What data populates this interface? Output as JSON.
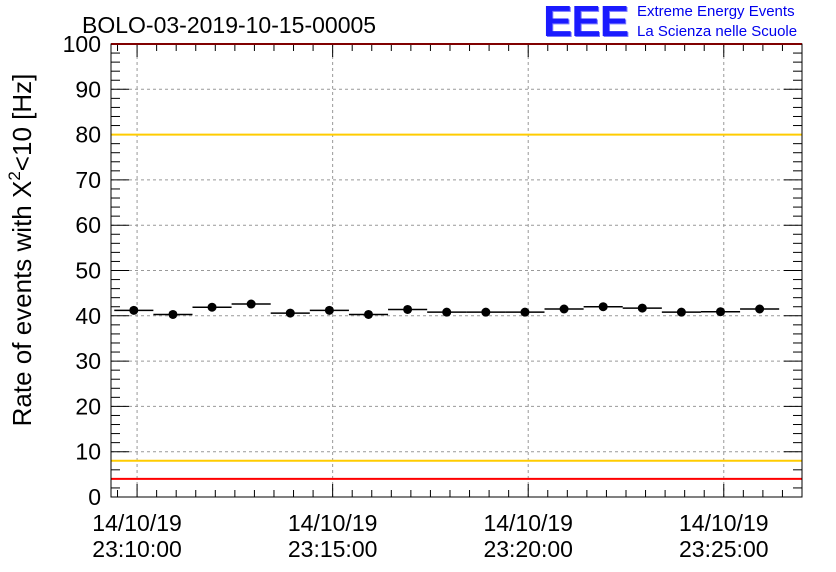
{
  "header": {
    "logo_text": "EEE",
    "logo_line1": "Extreme Energy Events",
    "logo_line2": "La Scienza nelle Scuole"
  },
  "colors": {
    "upper_limit": "#ff0000",
    "warning_high": "#ffcc00",
    "warning_low": "#ffcc00",
    "lower_limit": "#ff0000",
    "points": "#000000",
    "grid": "#999999"
  },
  "chart_data": {
    "type": "scatter",
    "title": "BOLO-03-2019-10-15-00005",
    "ylabel_prefix": "Rate of events with X",
    "ylabel_sup": "2",
    "ylabel_suffix": "<10 [Hz]",
    "xlabel": "",
    "ylim": [
      0,
      100
    ],
    "y_ticks": [
      "0",
      "10",
      "20",
      "30",
      "40",
      "50",
      "60",
      "70",
      "80",
      "90",
      "100"
    ],
    "x_range_sec": [
      -40,
      1020
    ],
    "x_ticks": [
      {
        "t": 0,
        "date": "14/10/19",
        "time": "23:10:00"
      },
      {
        "t": 300,
        "date": "14/10/19",
        "time": "23:15:00"
      },
      {
        "t": 600,
        "date": "14/10/19",
        "time": "23:20:00"
      },
      {
        "t": 900,
        "date": "14/10/19",
        "time": "23:25:00"
      }
    ],
    "x_unit": "seconds since 14/10/19 23:10:00",
    "bin_width_sec": 60,
    "reference_lines": [
      {
        "name": "upper-limit",
        "y": 100,
        "color": "#ff0000"
      },
      {
        "name": "warning-high",
        "y": 80,
        "color": "#ffcc00"
      },
      {
        "name": "warning-low",
        "y": 8,
        "color": "#ffcc00"
      },
      {
        "name": "lower-limit",
        "y": 4,
        "color": "#ff0000"
      }
    ],
    "series": [
      {
        "name": "rate",
        "x": [
          -5,
          55,
          115,
          175,
          235,
          295,
          355,
          415,
          475,
          535,
          595,
          655,
          715,
          775,
          835,
          895,
          955
        ],
        "values": [
          41.2,
          40.3,
          41.9,
          42.6,
          40.6,
          41.2,
          40.3,
          41.4,
          40.8,
          40.8,
          40.8,
          41.5,
          42.0,
          41.7,
          40.8,
          40.9,
          41.5
        ]
      }
    ]
  }
}
